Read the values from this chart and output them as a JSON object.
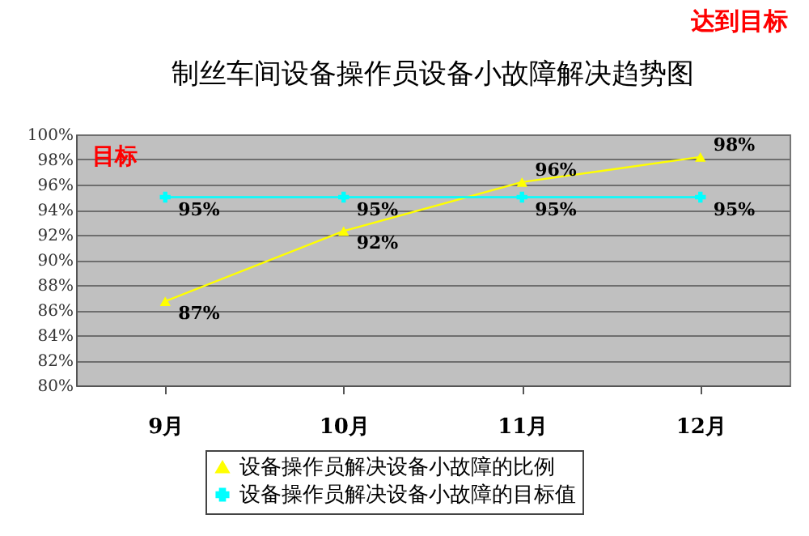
{
  "chart_data": {
    "type": "line",
    "title": "制丝车间设备操作员设备小故障解决趋势图",
    "categories": [
      "9月",
      "10月",
      "11月",
      "12月"
    ],
    "series": [
      {
        "name": "设备操作员解决设备小故障的比例",
        "color": "#ffff00",
        "marker": "triangle",
        "values": [
          86.7,
          92.3,
          96.2,
          98.2
        ],
        "value_labels": [
          "87%",
          "92%",
          "96%",
          "98%"
        ]
      },
      {
        "name": "设备操作员解决设备小故障的目标值",
        "color": "#00ffff",
        "marker": "cross",
        "values": [
          95,
          95,
          95,
          95
        ],
        "value_labels": [
          "95%",
          "95%",
          "95%",
          "95%"
        ]
      }
    ],
    "ylim": [
      80,
      100
    ],
    "yticks": [
      {
        "value": 80,
        "label": "80%"
      },
      {
        "value": 82,
        "label": "82%"
      },
      {
        "value": 84,
        "label": "84%"
      },
      {
        "value": 86,
        "label": "86%"
      },
      {
        "value": 88,
        "label": "88%"
      },
      {
        "value": 90,
        "label": "90%"
      },
      {
        "value": 92,
        "label": "92%"
      },
      {
        "value": 94,
        "label": "94%"
      },
      {
        "value": 96,
        "label": "96%"
      },
      {
        "value": 98,
        "label": "98%"
      },
      {
        "value": 100,
        "label": "100%"
      }
    ],
    "grid": "y",
    "legend": "bottom",
    "line_style": "solid",
    "annotations": [
      "达到目标",
      "目标"
    ]
  }
}
